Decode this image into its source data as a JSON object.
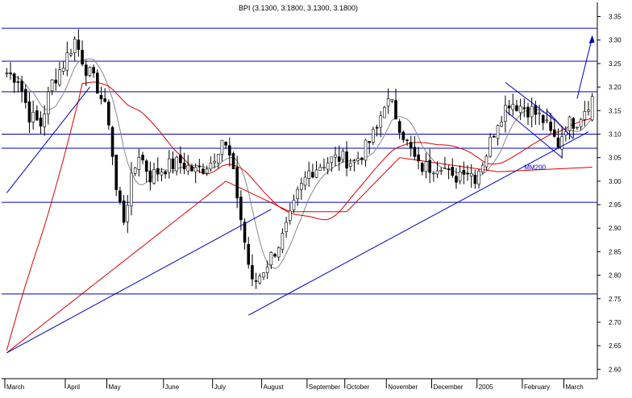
{
  "chart_data": {
    "type": "candlestick",
    "title": "BPI (3.1300, 3.1800, 3.1300, 3.1800)",
    "ylim": [
      2.58,
      3.38
    ],
    "yticks": [
      2.6,
      2.65,
      2.7,
      2.75,
      2.8,
      2.85,
      2.9,
      2.95,
      3.0,
      3.05,
      3.1,
      3.15,
      3.2,
      3.25,
      3.3,
      3.35
    ],
    "xlabels": [
      "March",
      "April",
      "May",
      "June",
      "July",
      "August",
      "September",
      "October",
      "November",
      "December",
      "2005",
      "February",
      "March"
    ],
    "xlabel_index": [
      0,
      16,
      27,
      42,
      55,
      68,
      80,
      90,
      101,
      113,
      125,
      137,
      148
    ],
    "n_bars": 156,
    "support_resistance_levels": [
      3.325,
      3.255,
      3.19,
      3.1,
      3.07,
      2.955,
      2.76
    ],
    "trendlines": [
      {
        "from": [
          0,
          2.975
        ],
        "to": [
          22,
          3.2
        ]
      },
      {
        "from": [
          0,
          2.635
        ],
        "to": [
          70,
          2.94
        ]
      },
      {
        "from": [
          64,
          2.715
        ],
        "to": [
          154,
          3.105
        ]
      }
    ],
    "channel": {
      "upper": [
        [
          132,
          3.21
        ],
        [
          145,
          3.13
        ]
      ],
      "lower": [
        [
          132,
          3.15
        ],
        [
          147,
          3.05
        ]
      ],
      "wedge": [
        [
          143,
          3.15
        ],
        [
          150,
          3.09
        ]
      ]
    },
    "forecast_arrow": {
      "from": [
        151,
        3.175
      ],
      "to": [
        155,
        3.305
      ]
    },
    "ma200_label": "MM200",
    "candle_color_up": "#ffffff",
    "candle_color_down": "#000000",
    "ma_long_color": "#dd0000",
    "ma_short_color": "#888888",
    "line_color": "#0000bb"
  }
}
